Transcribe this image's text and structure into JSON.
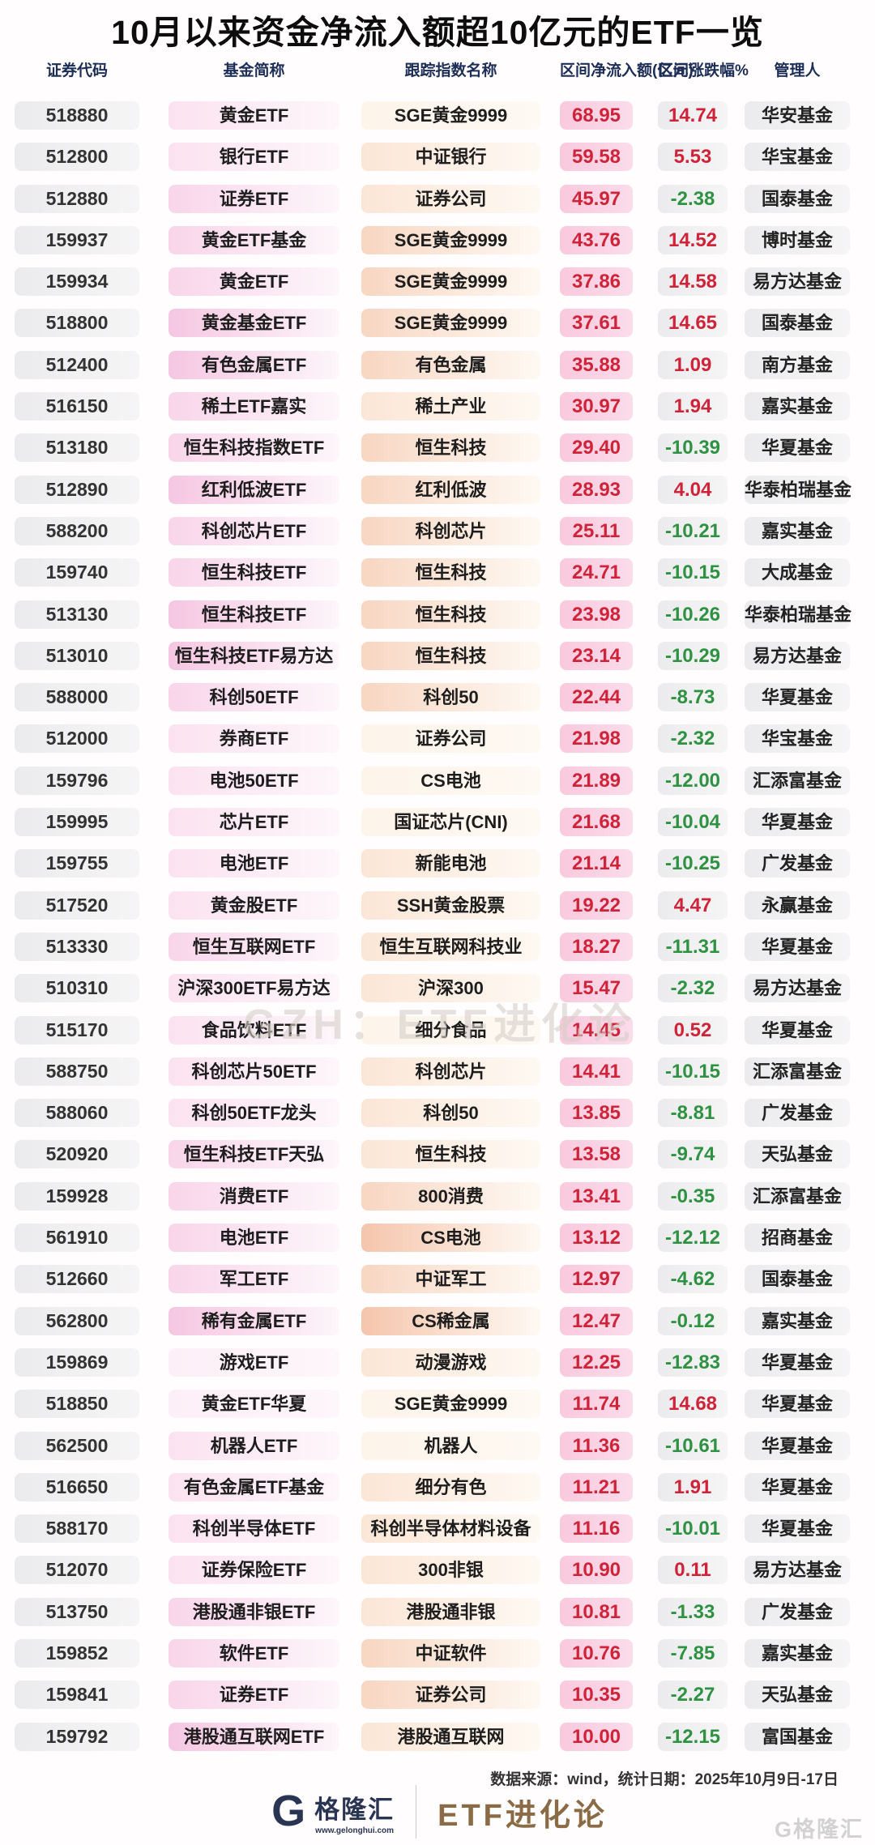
{
  "title": "10月以来资金净流入额超10亿元的ETF一览",
  "watermark_center": "GZH：ETF进化论",
  "footer": {
    "source": "数据来源：wind，统计日期：2025年10月9日-17日",
    "logo_letter": "G",
    "logo_text": "格隆汇",
    "logo_url_text": "www.gelonghui.com",
    "brand_text": "ETF进化论",
    "watermark_corner": "G格隆汇"
  },
  "colors": {
    "positive": "#cf2339",
    "negative": "#2f9242",
    "header_text": "#1c2d56",
    "inflow_bg": "#fac9dd",
    "gray_pill": "#ebebed",
    "brand": "#8a6b46",
    "navy": "#2a3553"
  },
  "chart_data": {
    "type": "table",
    "title": "10月以来资金净流入额超10亿元的ETF一览",
    "columns": [
      "证券代码",
      "基金简称",
      "跟踪指数名称",
      "区间净流入额(亿元)",
      "区间涨跌幅%",
      "管理人"
    ],
    "rows": [
      [
        "518880",
        "黄金ETF",
        "SGE黄金9999",
        "68.95",
        "14.74",
        "华安基金"
      ],
      [
        "512800",
        "银行ETF",
        "中证银行",
        "59.58",
        "5.53",
        "华宝基金"
      ],
      [
        "512880",
        "证券ETF",
        "证券公司",
        "45.97",
        "-2.38",
        "国泰基金"
      ],
      [
        "159937",
        "黄金ETF基金",
        "SGE黄金9999",
        "43.76",
        "14.52",
        "博时基金"
      ],
      [
        "159934",
        "黄金ETF",
        "SGE黄金9999",
        "37.86",
        "14.58",
        "易方达基金"
      ],
      [
        "518800",
        "黄金基金ETF",
        "SGE黄金9999",
        "37.61",
        "14.65",
        "国泰基金"
      ],
      [
        "512400",
        "有色金属ETF",
        "有色金属",
        "35.88",
        "1.09",
        "南方基金"
      ],
      [
        "516150",
        "稀土ETF嘉实",
        "稀土产业",
        "30.97",
        "1.94",
        "嘉实基金"
      ],
      [
        "513180",
        "恒生科技指数ETF",
        "恒生科技",
        "29.40",
        "-10.39",
        "华夏基金"
      ],
      [
        "512890",
        "红利低波ETF",
        "红利低波",
        "28.93",
        "4.04",
        "华泰柏瑞基金"
      ],
      [
        "588200",
        "科创芯片ETF",
        "科创芯片",
        "25.11",
        "-10.21",
        "嘉实基金"
      ],
      [
        "159740",
        "恒生科技ETF",
        "恒生科技",
        "24.71",
        "-10.15",
        "大成基金"
      ],
      [
        "513130",
        "恒生科技ETF",
        "恒生科技",
        "23.98",
        "-10.26",
        "华泰柏瑞基金"
      ],
      [
        "513010",
        "恒生科技ETF易方达",
        "恒生科技",
        "23.14",
        "-10.29",
        "易方达基金"
      ],
      [
        "588000",
        "科创50ETF",
        "科创50",
        "22.44",
        "-8.73",
        "华夏基金"
      ],
      [
        "512000",
        "券商ETF",
        "证券公司",
        "21.98",
        "-2.32",
        "华宝基金"
      ],
      [
        "159796",
        "电池50ETF",
        "CS电池",
        "21.89",
        "-12.00",
        "汇添富基金"
      ],
      [
        "159995",
        "芯片ETF",
        "国证芯片(CNI)",
        "21.68",
        "-10.04",
        "华夏基金"
      ],
      [
        "159755",
        "电池ETF",
        "新能电池",
        "21.14",
        "-10.25",
        "广发基金"
      ],
      [
        "517520",
        "黄金股ETF",
        "SSH黄金股票",
        "19.22",
        "4.47",
        "永赢基金"
      ],
      [
        "513330",
        "恒生互联网ETF",
        "恒生互联网科技业",
        "18.27",
        "-11.31",
        "华夏基金"
      ],
      [
        "510310",
        "沪深300ETF易方达",
        "沪深300",
        "15.47",
        "-2.32",
        "易方达基金"
      ],
      [
        "515170",
        "食品饮料ETF",
        "细分食品",
        "14.45",
        "0.52",
        "华夏基金"
      ],
      [
        "588750",
        "科创芯片50ETF",
        "科创芯片",
        "14.41",
        "-10.15",
        "汇添富基金"
      ],
      [
        "588060",
        "科创50ETF龙头",
        "科创50",
        "13.85",
        "-8.81",
        "广发基金"
      ],
      [
        "520920",
        "恒生科技ETF天弘",
        "恒生科技",
        "13.58",
        "-9.74",
        "天弘基金"
      ],
      [
        "159928",
        "消费ETF",
        "800消费",
        "13.41",
        "-0.35",
        "汇添富基金"
      ],
      [
        "561910",
        "电池ETF",
        "CS电池",
        "13.12",
        "-12.12",
        "招商基金"
      ],
      [
        "512660",
        "军工ETF",
        "中证军工",
        "12.97",
        "-4.62",
        "国泰基金"
      ],
      [
        "562800",
        "稀有金属ETF",
        "CS稀金属",
        "12.47",
        "-0.12",
        "嘉实基金"
      ],
      [
        "159869",
        "游戏ETF",
        "动漫游戏",
        "12.25",
        "-12.83",
        "华夏基金"
      ],
      [
        "518850",
        "黄金ETF华夏",
        "SGE黄金9999",
        "11.74",
        "14.68",
        "华夏基金"
      ],
      [
        "562500",
        "机器人ETF",
        "机器人",
        "11.36",
        "-10.61",
        "华夏基金"
      ],
      [
        "516650",
        "有色金属ETF基金",
        "细分有色",
        "11.21",
        "1.91",
        "华夏基金"
      ],
      [
        "588170",
        "科创半导体ETF",
        "科创半导体材料设备",
        "11.16",
        "-10.01",
        "华夏基金"
      ],
      [
        "512070",
        "证券保险ETF",
        "300非银",
        "10.90",
        "0.11",
        "易方达基金"
      ],
      [
        "513750",
        "港股通非银ETF",
        "港股通非银",
        "10.81",
        "-1.33",
        "广发基金"
      ],
      [
        "159852",
        "软件ETF",
        "中证软件",
        "10.76",
        "-7.85",
        "嘉实基金"
      ],
      [
        "159841",
        "证券ETF",
        "证券公司",
        "10.35",
        "-2.27",
        "天弘基金"
      ],
      [
        "159792",
        "港股通互联网ETF",
        "港股通互联网",
        "10.00",
        "-12.15",
        "富国基金"
      ]
    ]
  },
  "row_tints": [
    {
      "fund": "#fce2f0",
      "index": "#fdf4ea"
    },
    {
      "fund": "#fce2f0",
      "index": "#fbe6d6"
    },
    {
      "fund": "#f9d5ea",
      "index": "#fbe6d6"
    },
    {
      "fund": "#f9d5ea",
      "index": "#f8d6c2"
    },
    {
      "fund": "#f9d5ea",
      "index": "#f8d6c2"
    },
    {
      "fund": "#f6c6e2",
      "index": "#f8d6c2"
    },
    {
      "fund": "#f6c6e2",
      "index": "#f8d6c2"
    },
    {
      "fund": "#f9d5ea",
      "index": "#fbe6d6"
    },
    {
      "fund": "#f9d5ea",
      "index": "#f8d6c2"
    },
    {
      "fund": "#f6c6e2",
      "index": "#f8d6c2"
    },
    {
      "fund": "#f9d5ea",
      "index": "#f8d6c2"
    },
    {
      "fund": "#f9d5ea",
      "index": "#f8d6c2"
    },
    {
      "fund": "#f6c6e2",
      "index": "#f8d6c2"
    },
    {
      "fund": "#f6c6e2",
      "index": "#f8d6c2"
    },
    {
      "fund": "#f9d5ea",
      "index": "#f8d6c2"
    },
    {
      "fund": "#fce2f0",
      "index": "#fdf4ea"
    },
    {
      "fund": "#fce2f0",
      "index": "#fdf4ea"
    },
    {
      "fund": "#fce2f0",
      "index": "#fdf4ea"
    },
    {
      "fund": "#fce2f0",
      "index": "#fbe6d6"
    },
    {
      "fund": "#fce2f0",
      "index": "#fbe6d6"
    },
    {
      "fund": "#f9d5ea",
      "index": "#fbe6d6"
    },
    {
      "fund": "#fce2f0",
      "index": "#fbe6d6"
    },
    {
      "fund": "#fce2f0",
      "index": "#fdf4ea"
    },
    {
      "fund": "#fce2f0",
      "index": "#fbe6d6"
    },
    {
      "fund": "#fce2f0",
      "index": "#fbe6d6"
    },
    {
      "fund": "#f9d5ea",
      "index": "#fbe6d6"
    },
    {
      "fund": "#f9d5ea",
      "index": "#f8d6c2"
    },
    {
      "fund": "#f9d5ea",
      "index": "#f5c5ac"
    },
    {
      "fund": "#f9d5ea",
      "index": "#f8d6c2"
    },
    {
      "fund": "#f6c6e2",
      "index": "#f5c5ac"
    },
    {
      "fund": "#fdeff7",
      "index": "#fbe6d6"
    },
    {
      "fund": "#fdeff7",
      "index": "#fdf4ea"
    },
    {
      "fund": "#fce2f0",
      "index": "#fdf4ea"
    },
    {
      "fund": "#fce2f0",
      "index": "#fbe6d6"
    },
    {
      "fund": "#fce2f0",
      "index": "#fbe6d6"
    },
    {
      "fund": "#fce2f0",
      "index": "#fbe6d6"
    },
    {
      "fund": "#f9d5ea",
      "index": "#fbe6d6"
    },
    {
      "fund": "#f9d5ea",
      "index": "#f8d6c2"
    },
    {
      "fund": "#f9d5ea",
      "index": "#f8d6c2"
    },
    {
      "fund": "#f6c6e2",
      "index": "#fbe6d6"
    }
  ]
}
